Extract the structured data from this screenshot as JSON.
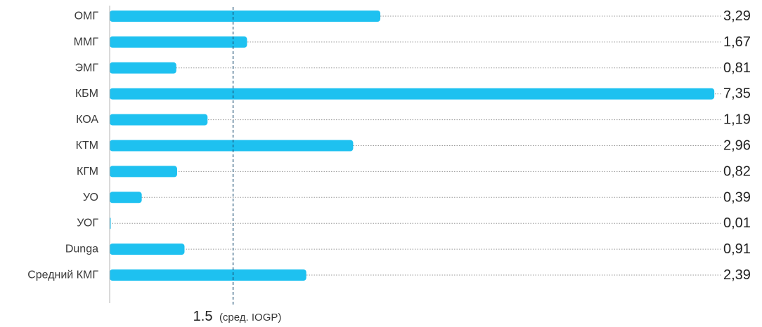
{
  "chart_data": {
    "type": "bar",
    "orientation": "horizontal",
    "categories": [
      "ОМГ",
      "ММГ",
      "ЭМГ",
      "КБМ",
      "КОА",
      "КТМ",
      "КГМ",
      "УО",
      "УОГ",
      "Dunga",
      "Средний КМГ"
    ],
    "values": [
      3.29,
      1.67,
      0.81,
      7.35,
      1.19,
      2.96,
      0.82,
      0.39,
      0.01,
      0.91,
      2.39
    ],
    "value_labels": [
      "3,29",
      "1,67",
      "0,81",
      "7,35",
      "1,19",
      "2,96",
      "0,82",
      "0,39",
      "0,01",
      "0,91",
      "2,39"
    ],
    "xlim": [
      0,
      7.4
    ],
    "bar_color": "#1ec1f0",
    "dotted_guides": true,
    "reference_line": {
      "value": 1.5,
      "value_label": "1.5",
      "note": "(сред. IOGP)",
      "color": "#1b4f72",
      "style": "dashed"
    }
  }
}
